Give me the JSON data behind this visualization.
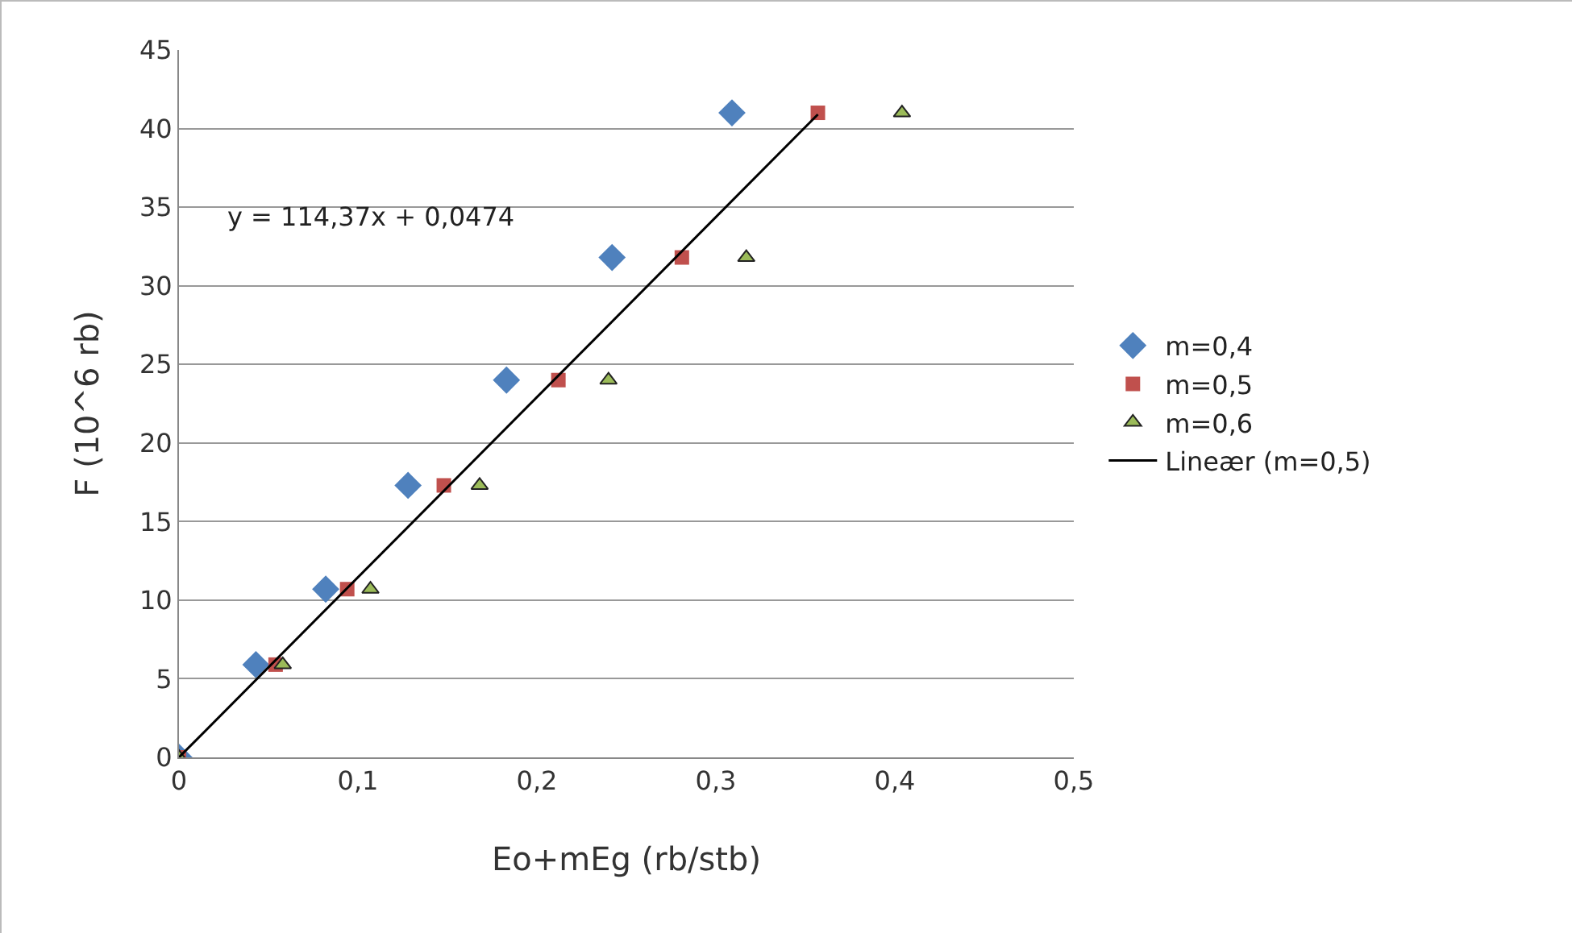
{
  "chart_data": {
    "type": "scatter",
    "xlabel": "Eo+mEg (rb/stb)",
    "ylabel": "F (10^6 rb)",
    "xlim": [
      0,
      0.5
    ],
    "xticks": [
      {
        "value": 0,
        "label": "0"
      },
      {
        "value": 0.1,
        "label": "0,1"
      },
      {
        "value": 0.2,
        "label": "0,2"
      },
      {
        "value": 0.3,
        "label": "0,3"
      },
      {
        "value": 0.4,
        "label": "0,4"
      },
      {
        "value": 0.5,
        "label": "0,5"
      }
    ],
    "ylim": [
      0,
      45
    ],
    "yticks": [
      0,
      5,
      10,
      15,
      20,
      25,
      30,
      35,
      40,
      45
    ],
    "grid": "y",
    "legend": "right",
    "annotations": [
      "y = 114,37x + 0,0474"
    ],
    "series": [
      {
        "name": "m=0,4",
        "color": "#4f81bd",
        "marker": "diamond",
        "x": [
          0,
          0.043,
          0.082,
          0.128,
          0.183,
          0.242,
          0.309
        ],
        "values": [
          0,
          5.9,
          10.7,
          17.3,
          24.0,
          31.8,
          41.0
        ]
      },
      {
        "name": "m=0,5",
        "color": "#c0504d",
        "marker": "square",
        "x": [
          0,
          0.054,
          0.094,
          0.148,
          0.212,
          0.281,
          0.357
        ],
        "values": [
          0,
          5.9,
          10.7,
          17.3,
          24.0,
          31.8,
          41.0
        ]
      },
      {
        "name": "m=0,6",
        "color": "#9bbb59",
        "marker": "triangle",
        "x": [
          0,
          0.058,
          0.107,
          0.168,
          0.24,
          0.317,
          0.404
        ],
        "values": [
          0,
          5.9,
          10.7,
          17.3,
          24.0,
          31.8,
          41.0
        ]
      },
      {
        "name": "Lineær (m=0,5)",
        "type": "line",
        "color": "#000000",
        "marker": "none",
        "line_style": "solid",
        "x": [
          0,
          0.357
        ],
        "values": [
          0,
          40.9
        ]
      }
    ]
  }
}
